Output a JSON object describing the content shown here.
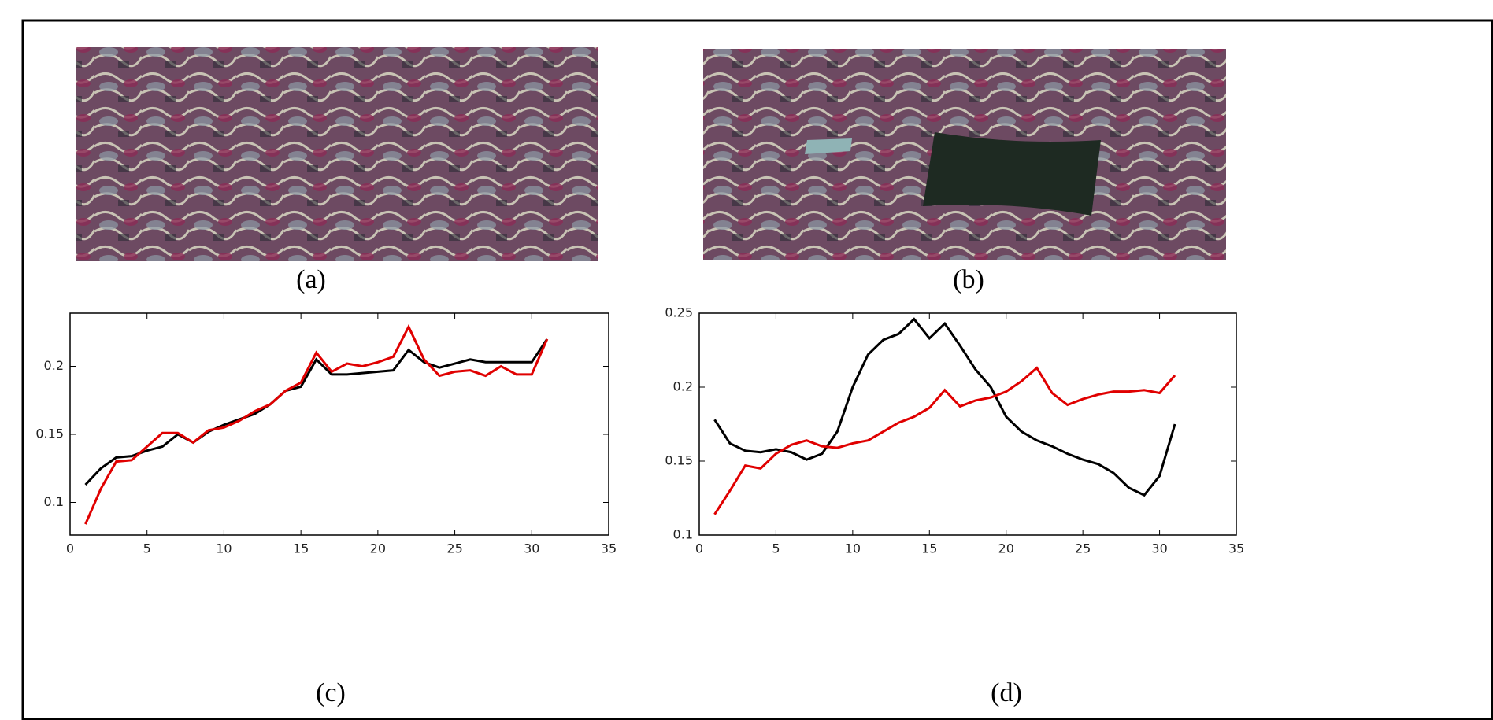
{
  "captions": [
    "(a)",
    "(b)",
    "(c)",
    "(d)"
  ],
  "chart_data": [
    {
      "type": "line",
      "x": [
        1,
        2,
        3,
        4,
        5,
        6,
        7,
        8,
        9,
        10,
        11,
        12,
        13,
        14,
        15,
        16,
        17,
        18,
        19,
        20,
        21,
        22,
        23,
        24,
        25,
        26,
        27,
        28,
        29,
        30,
        31
      ],
      "series": [
        {
          "color": "#000000",
          "values": [
            0.113,
            0.125,
            0.133,
            0.134,
            0.138,
            0.141,
            0.15,
            0.144,
            0.152,
            0.157,
            0.161,
            0.165,
            0.172,
            0.182,
            0.185,
            0.205,
            0.194,
            0.194,
            0.195,
            0.196,
            0.197,
            0.212,
            0.203,
            0.199,
            0.202,
            0.205,
            0.203,
            0.203,
            0.203,
            0.203,
            0.22
          ]
        },
        {
          "color": "#e00000",
          "values": [
            0.084,
            0.11,
            0.13,
            0.131,
            0.141,
            0.151,
            0.151,
            0.144,
            0.153,
            0.155,
            0.16,
            0.167,
            0.172,
            0.182,
            0.188,
            0.21,
            0.196,
            0.202,
            0.2,
            0.203,
            0.207,
            0.229,
            0.205,
            0.193,
            0.196,
            0.197,
            0.193,
            0.2,
            0.194,
            0.194,
            0.22
          ]
        }
      ],
      "xlim": [
        0,
        35
      ],
      "xticks": [
        0,
        5,
        10,
        15,
        20,
        25,
        30,
        35
      ],
      "ylim": [
        0.076,
        0.239
      ],
      "yticks": [
        0.1,
        0.15,
        0.2
      ]
    },
    {
      "type": "line",
      "x": [
        1,
        2,
        3,
        4,
        5,
        6,
        7,
        8,
        9,
        10,
        11,
        12,
        13,
        14,
        15,
        16,
        17,
        18,
        19,
        20,
        21,
        22,
        23,
        24,
        25,
        26,
        27,
        28,
        29,
        30,
        31
      ],
      "series": [
        {
          "color": "#000000",
          "values": [
            0.178,
            0.162,
            0.157,
            0.156,
            0.158,
            0.156,
            0.151,
            0.155,
            0.17,
            0.2,
            0.222,
            0.232,
            0.236,
            0.246,
            0.233,
            0.243,
            0.228,
            0.212,
            0.2,
            0.18,
            0.17,
            0.164,
            0.16,
            0.155,
            0.151,
            0.148,
            0.142,
            0.132,
            0.127,
            0.14,
            0.175
          ]
        },
        {
          "color": "#e00000",
          "values": [
            0.114,
            0.13,
            0.147,
            0.145,
            0.155,
            0.161,
            0.164,
            0.16,
            0.159,
            0.162,
            0.164,
            0.17,
            0.176,
            0.18,
            0.186,
            0.198,
            0.187,
            0.191,
            0.193,
            0.197,
            0.204,
            0.213,
            0.196,
            0.188,
            0.192,
            0.195,
            0.197,
            0.197,
            0.198,
            0.196,
            0.208
          ]
        }
      ],
      "xlim": [
        0,
        35
      ],
      "xticks": [
        0,
        5,
        10,
        15,
        20,
        25,
        30,
        35
      ],
      "ylim": [
        0.1,
        0.25
      ],
      "yticks": [
        0.1,
        0.15,
        0.2,
        0.25
      ]
    }
  ]
}
